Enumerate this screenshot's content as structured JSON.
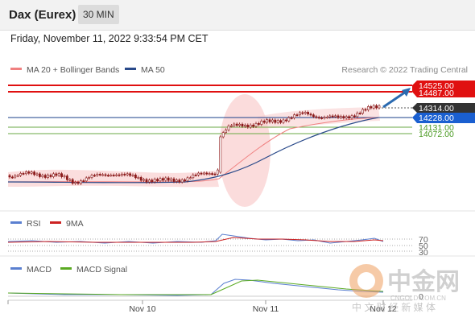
{
  "header": {
    "instrument": "Dax (Eurex)",
    "timeframe": "30 MIN"
  },
  "datetime": "Friday, November 11, 2022 9:33:54 PM CET",
  "legend_main": [
    {
      "label": "MA 20 + Bollinger Bands",
      "color": "#f08080"
    },
    {
      "label": "MA 50",
      "color": "#2a4a8a"
    }
  ],
  "credit": "Research © 2022 Trading Central",
  "colors": {
    "resistance": "#e01010",
    "pivot": "#1a3f8a",
    "support": "#6aaa44",
    "candle": "#8b1a1a",
    "band_fill": "#f8c8c8",
    "arrow": "#2a6ab0",
    "rsi": "#5a7fd0",
    "rsi_ma": "#cc2222",
    "macd": "#5a7fd0",
    "macd_signal": "#5aaa22"
  },
  "levels": [
    {
      "name": "resistance-2",
      "value": "14525.00",
      "type": "resistance"
    },
    {
      "name": "resistance-1",
      "value": "14487.00",
      "type": "resistance"
    },
    {
      "name": "last-price",
      "value": "14314.00",
      "type": "price"
    },
    {
      "name": "pivot",
      "value": "14228.00",
      "type": "pivot"
    },
    {
      "name": "support-1",
      "value": "14131.00",
      "type": "support"
    },
    {
      "name": "support-2",
      "value": "14072.00",
      "type": "support"
    }
  ],
  "rsi_panel": {
    "legend": [
      {
        "label": "RSI",
        "color": "#5a7fd0"
      },
      {
        "label": "9MA",
        "color": "#cc2222"
      }
    ],
    "ticks": [
      "70",
      "50",
      "30"
    ]
  },
  "macd_panel": {
    "legend": [
      {
        "label": "MACD",
        "color": "#5a7fd0"
      },
      {
        "label": "MACD Signal",
        "color": "#5aaa22"
      }
    ],
    "zero_label": "0"
  },
  "x_axis": {
    "labels": [
      "Nov 10",
      "Nov 11",
      "Nov 12"
    ]
  },
  "watermark": {
    "brand": "中金网",
    "sub": "CNGOLD.COM.CN",
    "slogan": "中 文 财 经 新 媒 体"
  },
  "chart_data": {
    "type": "candlestick",
    "title": "Dax (Eurex)",
    "interval": "30 MIN",
    "close_approx": {
      "x": [
        "Nov 9 late",
        "Nov 10 early",
        "Nov 10",
        "Nov 10 midday",
        "Nov 10 late",
        "Nov 10 close",
        "Nov 11 open",
        "Nov 11 early",
        "Nov 11 midday",
        "Nov 11 afternoon",
        "Nov 11 late",
        "Nov 11 close"
      ],
      "y": [
        13740,
        13745,
        13735,
        13750,
        13720,
        13725,
        14190,
        14215,
        14250,
        14265,
        14245,
        14314
      ]
    },
    "y_axis_levels": [
      14525,
      14487,
      14314,
      14228,
      14131,
      14072
    ],
    "rsi_ticks": [
      70,
      50,
      30
    ],
    "x_tick_labels": [
      "Nov 10",
      "Nov 11",
      "Nov 12"
    ]
  }
}
